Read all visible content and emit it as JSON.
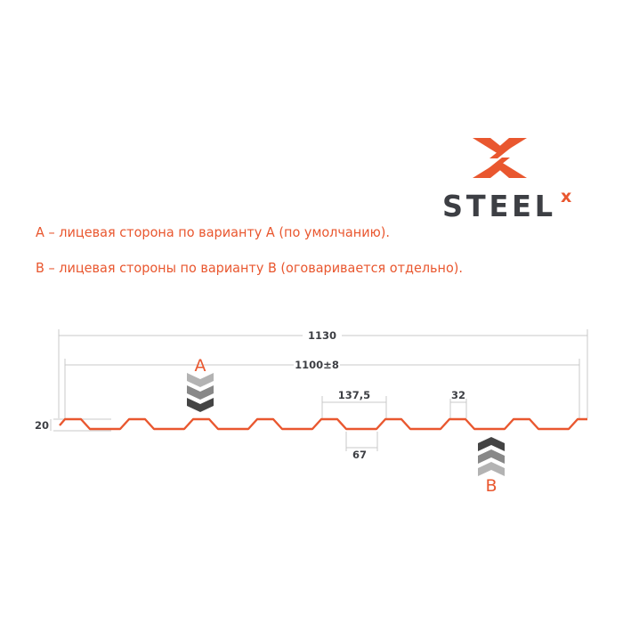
{
  "logo": {
    "text": "STEEL",
    "superscript": "x",
    "brand_color": "#e9572f",
    "text_color": "#3d3f44"
  },
  "notes": [
    "A – лицевая сторона по варианту A (по умолчанию).",
    "B – лицевая стороны по варианту B (оговаривается отдельно)."
  ],
  "dimensions": {
    "total_width": "1130",
    "useful_width": "1100±8",
    "pitch": "137,5",
    "top_width": "32",
    "bottom_width": "67",
    "height": "20"
  },
  "sides": {
    "a": "A",
    "b": "B"
  },
  "colors": {
    "profile": "#e9572f",
    "dimension_lines": "#c8c8c8",
    "chevron_light": "#b3b3b3",
    "chevron_mid": "#888888",
    "chevron_dark": "#444444"
  }
}
